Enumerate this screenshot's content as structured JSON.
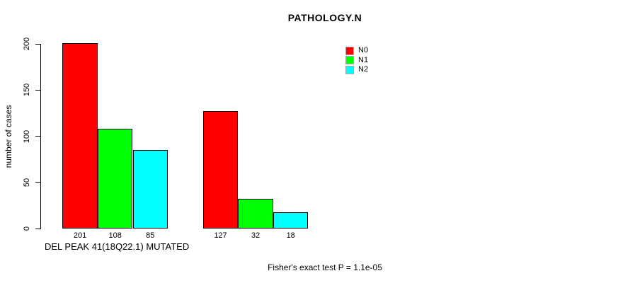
{
  "chart_data": {
    "type": "bar",
    "title": "PATHOLOGY.N",
    "xlabel": "DEL PEAK 41(18Q22.1) MUTATED",
    "ylabel": "number of cases",
    "ylim": [
      0,
      200
    ],
    "yticks": [
      0,
      50,
      100,
      150,
      200
    ],
    "grid": false,
    "legend_position": "top-right",
    "series": [
      {
        "name": "N0",
        "color": "#FF0000"
      },
      {
        "name": "N1",
        "color": "#00FF00"
      },
      {
        "name": "N2",
        "color": "#00FFFF"
      }
    ],
    "groups": [
      {
        "values": [
          201,
          108,
          85
        ],
        "bar_labels": [
          "201",
          "108",
          "85"
        ]
      },
      {
        "values": [
          127,
          32,
          18
        ],
        "bar_labels": [
          "127",
          "32",
          "18"
        ]
      }
    ],
    "annotation": "Fisher's exact test P = 1.1e-05"
  }
}
